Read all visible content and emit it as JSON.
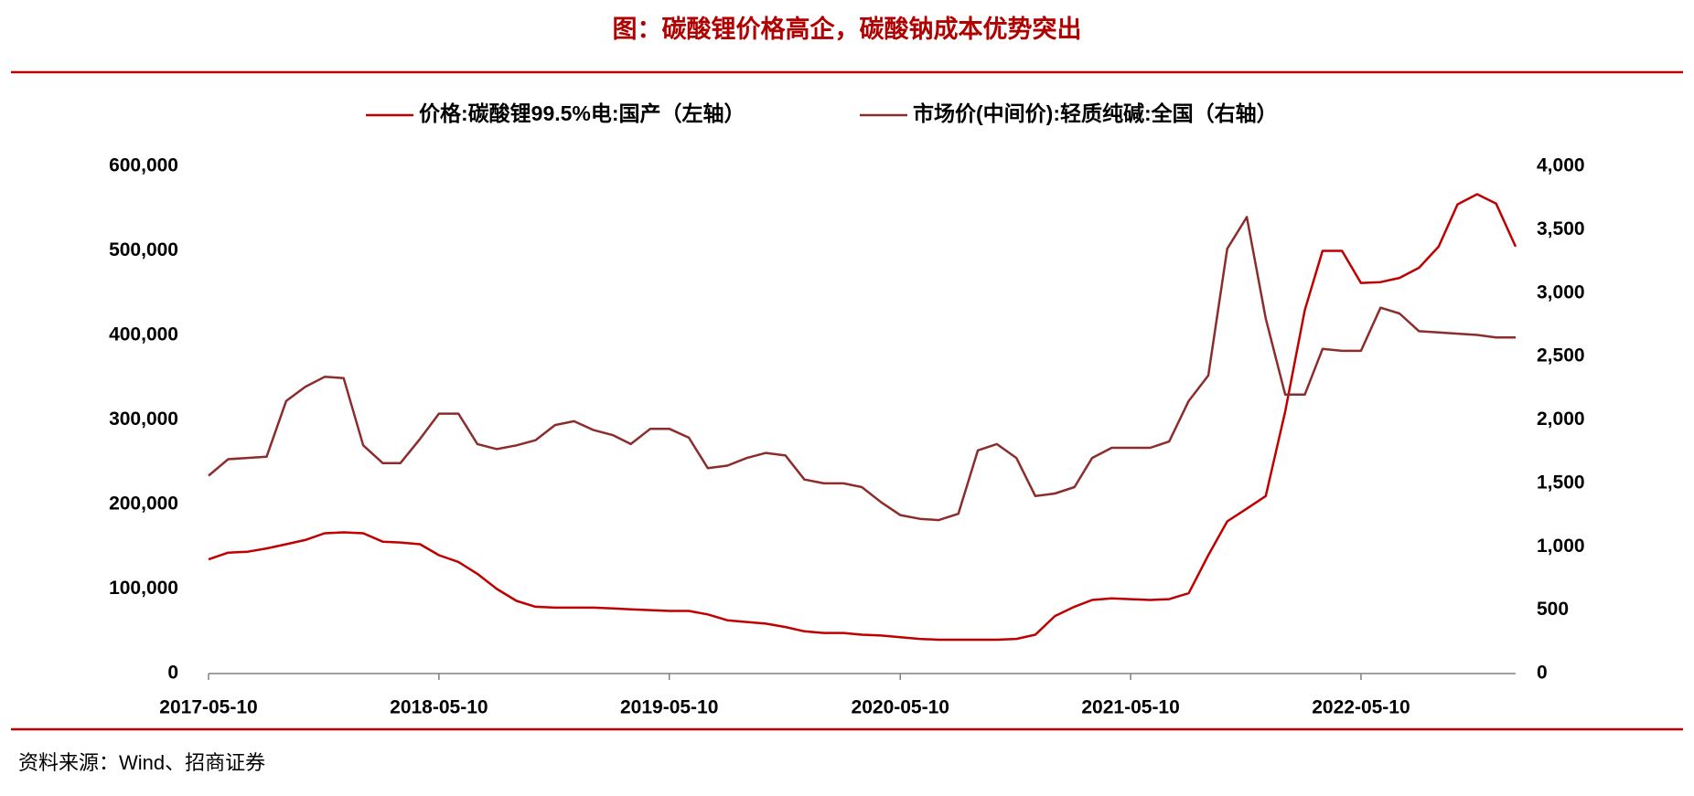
{
  "chart_data": {
    "type": "line",
    "title": "图：碳酸锂价格高企，碳酸钠成本优势突出",
    "source": "资料来源：Wind、招商证券",
    "x": [
      "2017-05-10",
      "2017-06-10",
      "2017-07-10",
      "2017-08-10",
      "2017-09-10",
      "2017-10-10",
      "2017-11-10",
      "2017-12-10",
      "2018-01-10",
      "2018-02-10",
      "2018-03-10",
      "2018-04-10",
      "2018-05-10",
      "2018-06-10",
      "2018-07-10",
      "2018-08-10",
      "2018-09-10",
      "2018-10-10",
      "2018-11-10",
      "2018-12-10",
      "2019-01-10",
      "2019-02-10",
      "2019-03-10",
      "2019-04-10",
      "2019-05-10",
      "2019-06-10",
      "2019-07-10",
      "2019-08-10",
      "2019-09-10",
      "2019-10-10",
      "2019-11-10",
      "2019-12-10",
      "2020-01-10",
      "2020-02-10",
      "2020-03-10",
      "2020-04-10",
      "2020-05-10",
      "2020-06-10",
      "2020-07-10",
      "2020-08-10",
      "2020-09-10",
      "2020-10-10",
      "2020-11-10",
      "2020-12-10",
      "2021-01-10",
      "2021-02-10",
      "2021-03-10",
      "2021-04-10",
      "2021-05-10",
      "2021-06-10",
      "2021-07-10",
      "2021-08-10",
      "2021-09-10",
      "2021-10-10",
      "2021-11-10",
      "2021-12-10",
      "2022-01-10",
      "2022-02-10",
      "2022-03-10",
      "2022-04-10",
      "2022-05-10",
      "2022-06-10",
      "2022-07-10",
      "2022-08-10",
      "2022-09-10",
      "2022-10-10",
      "2022-11-10",
      "2022-12-10",
      "2023-01-10"
    ],
    "series": [
      {
        "name": "价格:碳酸锂99.5%电:国产（左轴）",
        "color": "#c00000",
        "axis": "y",
        "values": [
          135000,
          143000,
          144000,
          148000,
          153000,
          158000,
          166000,
          167000,
          166000,
          156000,
          155000,
          153000,
          140000,
          132000,
          118000,
          100000,
          86000,
          79000,
          78000,
          78000,
          78000,
          77000,
          76000,
          75000,
          74000,
          74000,
          70000,
          63000,
          61000,
          59000,
          55000,
          50000,
          48000,
          48000,
          46000,
          45000,
          43000,
          41000,
          40000,
          40000,
          40000,
          40000,
          41000,
          46000,
          68000,
          79000,
          87000,
          89000,
          88000,
          87000,
          88000,
          95000,
          140000,
          180000,
          195000,
          210000,
          310000,
          430000,
          500000,
          500000,
          462000,
          463000,
          468000,
          480000,
          505000,
          555000,
          567000,
          556000,
          505000
        ]
      },
      {
        "name": "市场价(中间价):轻质纯碱:全国（右轴）",
        "color": "#8c2d2d",
        "axis": "y2",
        "values": [
          1560,
          1690,
          1700,
          1710,
          2150,
          2260,
          2340,
          2330,
          1800,
          1660,
          1660,
          1850,
          2050,
          2050,
          1810,
          1770,
          1800,
          1840,
          1960,
          1990,
          1920,
          1880,
          1810,
          1930,
          1930,
          1860,
          1620,
          1640,
          1700,
          1740,
          1720,
          1530,
          1500,
          1500,
          1470,
          1350,
          1250,
          1220,
          1210,
          1260,
          1760,
          1810,
          1700,
          1400,
          1420,
          1470,
          1700,
          1780,
          1780,
          1780,
          1830,
          2150,
          2350,
          3350,
          3600,
          2800,
          2200,
          2200,
          2560,
          2545,
          2545,
          2885,
          2840,
          2700,
          2690,
          2680,
          2670,
          2650,
          2650
        ]
      }
    ],
    "xlim": [
      "2017-05-10",
      "2023-01-10"
    ],
    "xticks": [
      "2017-05-10",
      "2018-05-10",
      "2019-05-10",
      "2020-05-10",
      "2021-05-10",
      "2022-05-10"
    ],
    "ylim": [
      0,
      600000
    ],
    "yticks": [
      0,
      {
        "value": 100000,
        "label": "100,000"
      },
      {
        "value": 200000,
        "label": "200,000"
      },
      {
        "value": 300000,
        "label": "300,000"
      },
      {
        "value": 400000,
        "label": "400,000"
      },
      {
        "value": 500000,
        "label": "500,000"
      },
      {
        "value": 600000,
        "label": "600,000"
      }
    ],
    "y2lim": [
      0,
      4000
    ],
    "y2ticks": [
      0,
      500,
      {
        "value": 1000,
        "label": "1,000"
      },
      {
        "value": 1500,
        "label": "1,500"
      },
      {
        "value": 2000,
        "label": "2,000"
      },
      {
        "value": 2500,
        "label": "2,500"
      },
      {
        "value": 3000,
        "label": "3,000"
      },
      {
        "value": 3500,
        "label": "3,500"
      },
      {
        "value": 4000,
        "label": "4,000"
      }
    ],
    "grid": false,
    "legend": "top"
  }
}
